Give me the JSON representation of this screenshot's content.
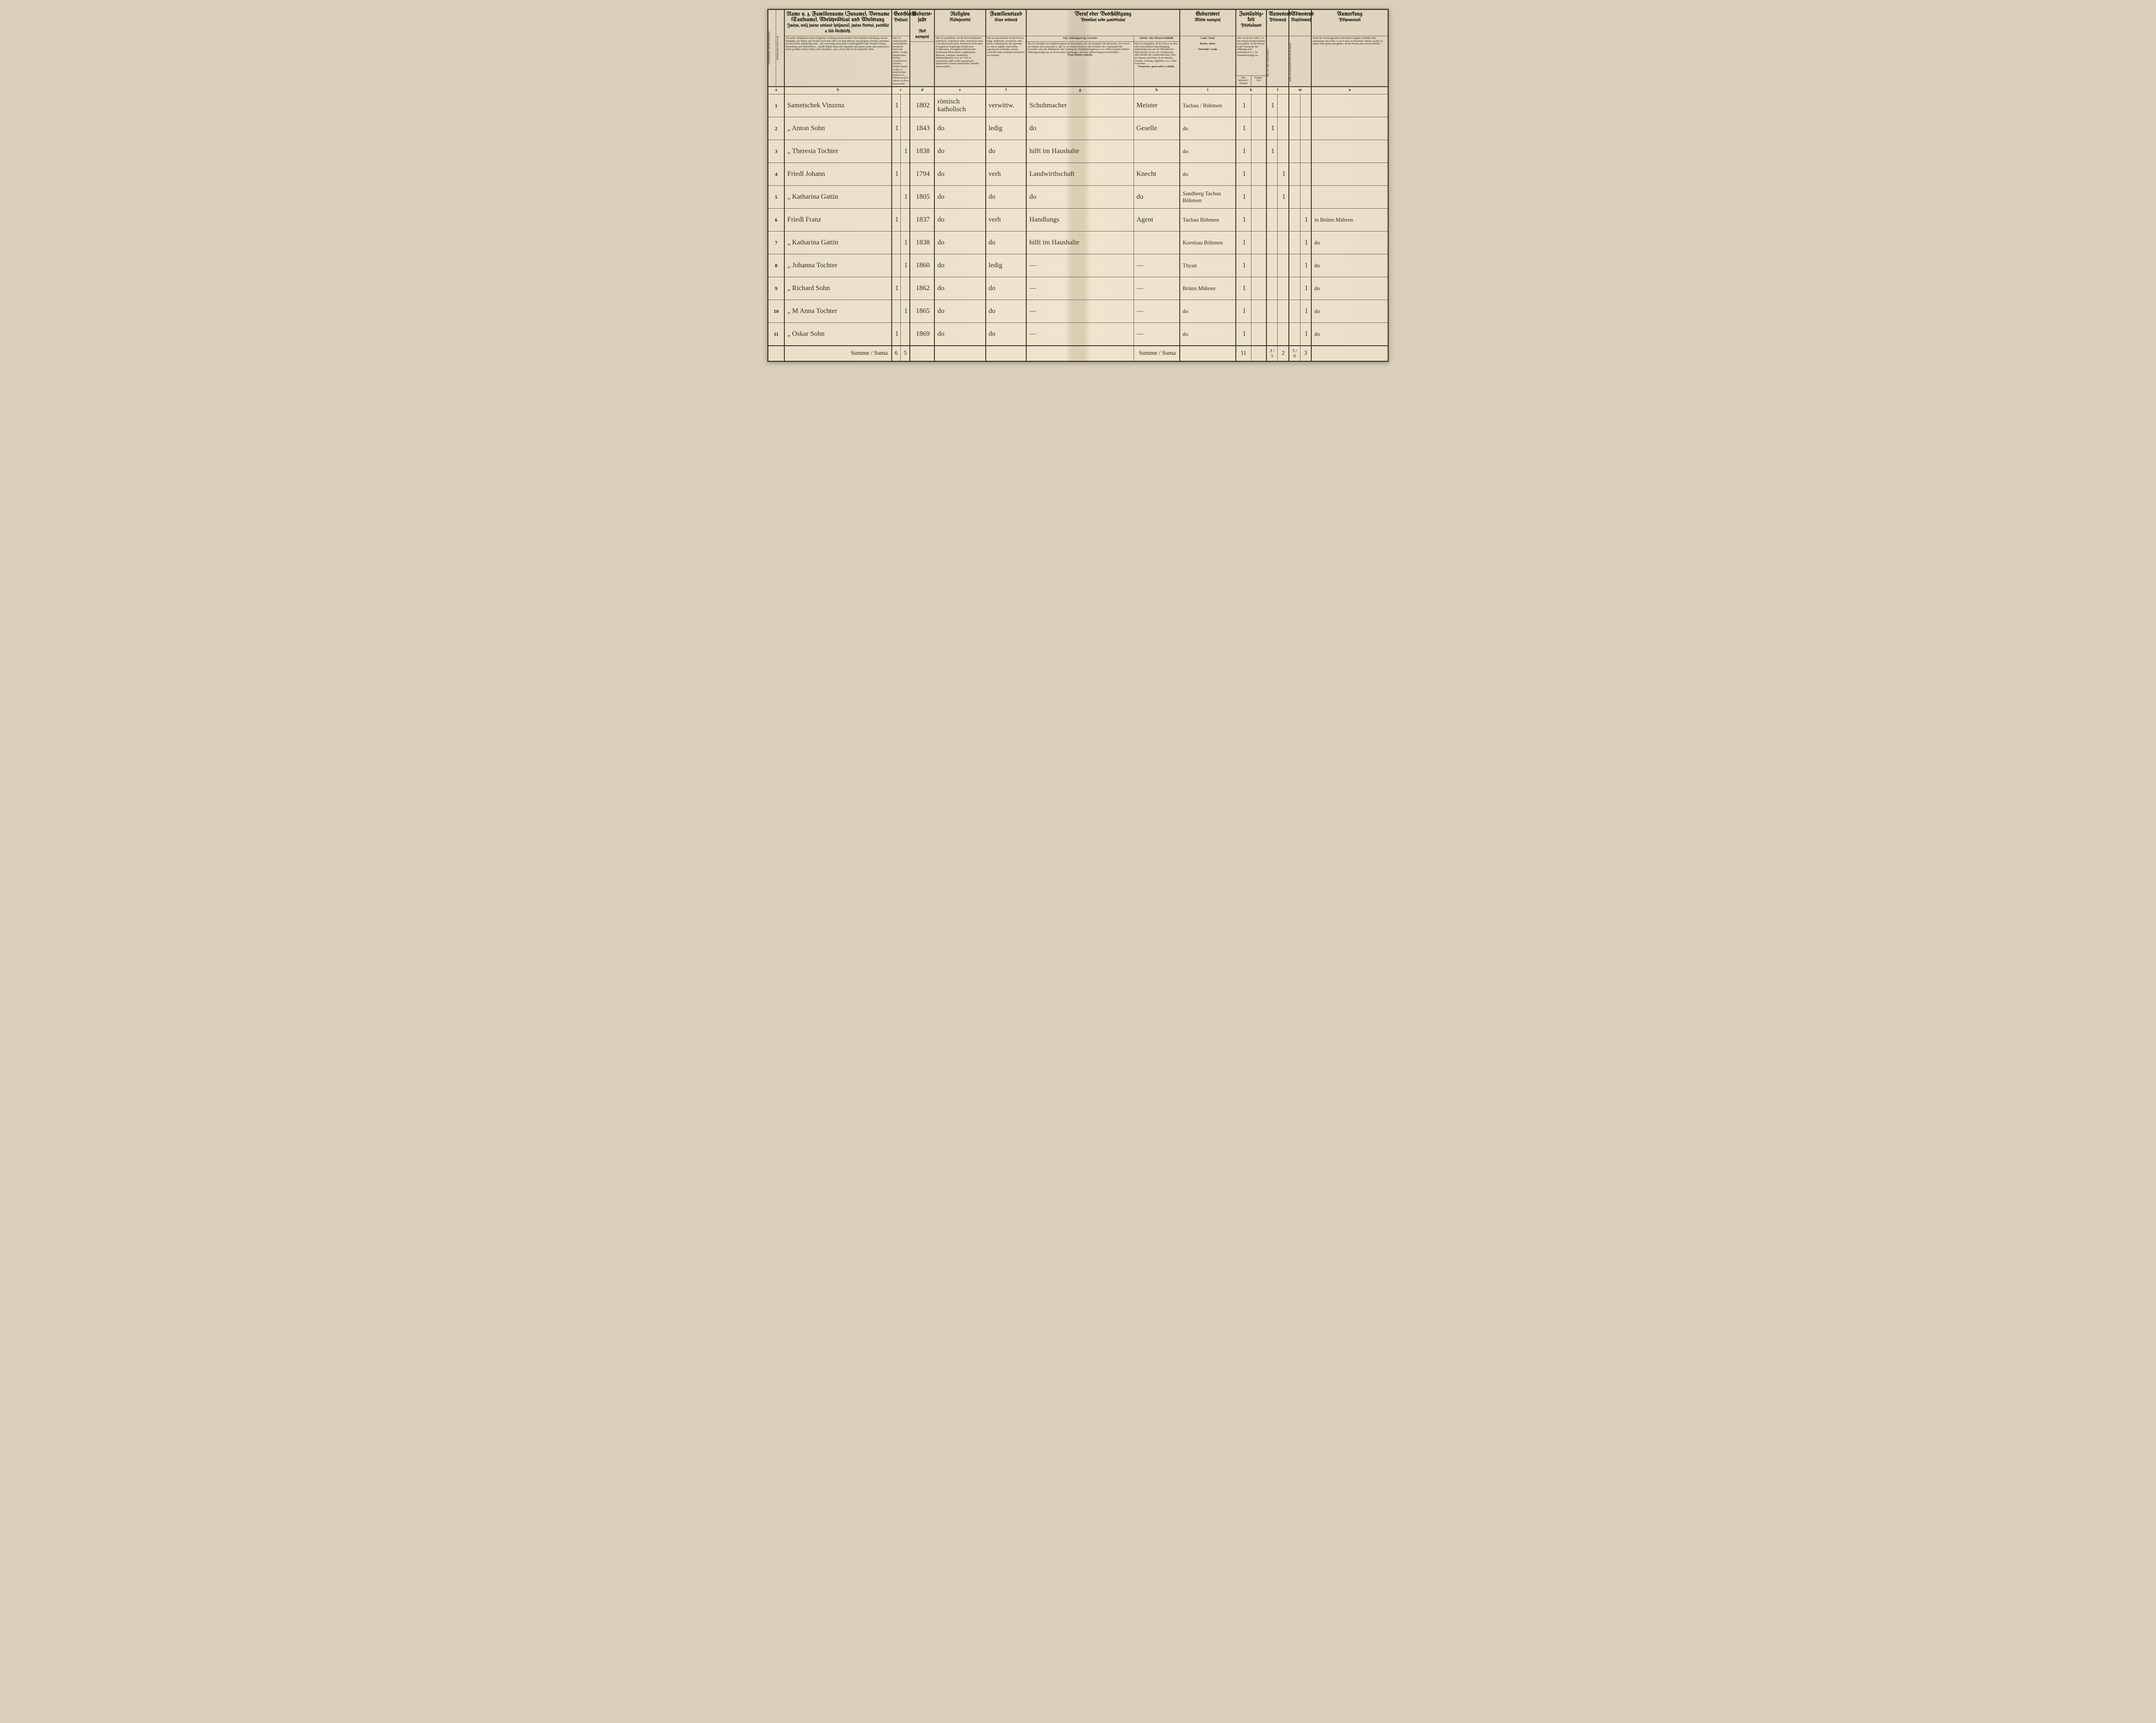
{
  "headers": {
    "name": {
      "de": "Name u. z. Familienname (Zuname), Vorname (Taufname), Adelsprädicat und Adelsrang",
      "cz": "Jméno, totiž jméno rodinné (příjmení), jméno křestné, predikát a řád šlechtický."
    },
    "sex": {
      "de": "Geschlecht",
      "cz": "Pohlaví"
    },
    "birth": {
      "de": "Geburts-jahr",
      "cz": "Rok narození"
    },
    "religion": {
      "de": "Religion",
      "cz": "Náboženství"
    },
    "famstate": {
      "de": "Familienstand",
      "cz": "Stav rodinný"
    },
    "occupation": {
      "de": "Beruf oder Beschäftigung",
      "cz": "Povolání nebo zaměstnání"
    },
    "occ_sub1": {
      "de": "Amt, Nahrungszweig, Gewerbe.",
      "cz": "Úřad, živnost, řemeslo."
    },
    "occ_sub2": {
      "de": "Arbeits- oder Dienstverhältniß.",
      "cz": "Postavení v práci nebo ve službě."
    },
    "birthplace": {
      "de": "Geburtsort",
      "cz": "Místo narození"
    },
    "zust": {
      "de": "Zuständig-keit",
      "cz": "Příslušnost"
    },
    "anwesend": {
      "de": "Anwesend",
      "cz": "Přítomný"
    },
    "abwesend": {
      "de": "Abwesend",
      "cz": "Nepřítomný"
    },
    "note": {
      "de": "Anmerkung",
      "cz": "Připomenutí"
    },
    "land": "Land / Země",
    "bezirk": "Bezirk / okres",
    "ortschaft": "Ortschaft / osada",
    "einheimisch": "Ein-heimisch / Domácí",
    "fremd": "Fremd / Cizí",
    "summe": "Summe / Suma"
  },
  "tiny": {
    "name_desc": "Von jeder Wohnpartei sind in folgender Ordnung einzuschreiben: Das Familien-Oberhaupt, dessen Ehegattin, die Söhne und Töchter nach dem Alter von dem ältesten zum jüngsten abwärts, insoferne sie noch nicht selbständig sind... Nur zeitweilig anwesende Familienglieder oder Fremde (Gäste). Dienstleute und Hilfsarbeiter... Každý držitel domu neb nájemník má zapsati osoby ního poloviční v tomto pořádku: hlavu rodiny, jeho manželku, syny a dcery dle let od nejstaršího dolů...",
    "sex_desc": "Das Ge-schlecht jeder verzeichneten Person ist durch die Ziffer 1 in der betreffenden Rubrik ersichtlich zu machen. Pohlaví každé osoby za-psané pozna-mená se čí-slicem jen již v rubrice na-levo nazna-čené.",
    "relig_desc": "Hier ist anzuführen, ob die Person Römisch-katholisch, Griechisch-unirt, Armenisch-unirt, Griechisch-nicht unirt, Armenisch nicht unirt, Evangelisch Augsburger Konfession (Lutheraner), Evangelisch helvetischer Konfession (Reformirt), Anglikanisch, Menonit, Unitarier, Israelitisch, Mohamedanisch u.s.w. ist. Tuto se poznamená, zdali osoba zapsaná jest náboženství: římsko-katolického, řeckého sjednoceného...",
    "fam_desc": "Hier ist einzuzeichen ob die Person ledig, verheiratet, verwitwet, oder durch Auflösung der Ehe getrennt ist. Zde se napíše, zdali osoba zapsaná jest svobodna, ženatá, ovdovělá, nebo zrušením manželství roz-loučená.",
    "occ_desc": "Die Art desselben ist möglichst genau zu bezeichnen, z.B. die Kategorie des Beam-ten, ob er noch im Dienste oder pensionirt u. dgl. ist, in wessen Dienst er sich befindet, der Gegenstand des Gewerbes oder der Fabrikation, die Gattung des Handelsbefugnisses u.s.w. Wenn Jemand mehrere Nahrungszweige hat, so ist nur jener einzutragen, wel-cher seinen Hauptwerwerb bildet...",
    "work_desc": "Hier ist anzugeben, ob die Person an dem oben bezeichneten Beschäftigung selbständig oder nur als Hilfsarbei-ter Theil nimmt, ob sie z.B. Gutsbesitzer oder Pächter der Landwirthschaft, Oder im Dienste-stehender, ob sie Meister, Geselle, Lehrling, Taglöhner u.s.w. einer Gewerbes...",
    "zust_desc": "Hier ist mit der Ziffer 1 in der entsprechenden Rubrik anzu-geben, ob die Person in der Gemeinde des Zählungs-ortes einheimisch d. i. ihr heimatberechtigt ist...",
    "note_desc": "Wenn die Person gänzlich (auf beiden Augen) er-blindet oder taubstumm sein sollte, so ist es hier zu bemerken. Ebenso ist hier in jedem Falle genau anzugeben, ob die Person zum activen Militär..."
  },
  "letters": [
    "a",
    "b",
    "c",
    "d",
    "e",
    "f",
    "g",
    "h",
    "i",
    "k",
    "l",
    "m",
    "n"
  ],
  "rows": [
    {
      "n": "1",
      "name": "Sametschek Vinzenz",
      "m": "1",
      "f": "",
      "year": "1802",
      "relig": "römisch katholisch",
      "fam": "verwittw.",
      "occ": "Schuhmacher",
      "work": "Meister",
      "birth": "Tachau / Böhmen",
      "za": "1",
      "zb": "",
      "aa": "1",
      "ab": "",
      "ba": "",
      "bb": "",
      "note": ""
    },
    {
      "n": "2",
      "name": "„ Anton Sohn",
      "m": "1",
      "f": "",
      "year": "1843",
      "relig": "do",
      "fam": "ledig",
      "occ": "do",
      "work": "Geselle",
      "birth": "do",
      "za": "1",
      "zb": "",
      "aa": "1",
      "ab": "",
      "ba": "",
      "bb": "",
      "note": ""
    },
    {
      "n": "3",
      "name": "„ Theresia Tochter",
      "m": "",
      "f": "1",
      "year": "1838",
      "relig": "do",
      "fam": "do",
      "occ": "hilft im Haushalte",
      "work": "",
      "birth": "do",
      "za": "1",
      "zb": "",
      "aa": "1",
      "ab": "",
      "ba": "",
      "bb": "",
      "note": ""
    },
    {
      "n": "4",
      "name": "Friedl Johann",
      "m": "1",
      "f": "",
      "year": "1794",
      "relig": "do",
      "fam": "verh",
      "occ": "Landwirthschaft",
      "work": "Knecht",
      "birth": "do",
      "za": "1",
      "zb": "",
      "aa": "",
      "ab": "1",
      "ba": "",
      "bb": "",
      "note": ""
    },
    {
      "n": "5",
      "name": "„ Katharina Gattin",
      "m": "",
      "f": "1",
      "year": "1805",
      "relig": "do",
      "fam": "do",
      "occ": "do",
      "work": "do",
      "birth": "Sandberg Tachau Böhmen",
      "za": "1",
      "zb": "",
      "aa": "",
      "ab": "1",
      "ba": "",
      "bb": "",
      "note": ""
    },
    {
      "n": "6",
      "name": "Friedl Franz",
      "m": "1",
      "f": "",
      "year": "1837",
      "relig": "do",
      "fam": "verh",
      "occ": "Handlungs",
      "work": "Agent",
      "birth": "Tachau Böhmen",
      "za": "1",
      "zb": "",
      "aa": "",
      "ab": "",
      "ba": "",
      "bb": "1",
      "note": "in Brünn Mähren"
    },
    {
      "n": "7",
      "name": "„ Katharina Gattin",
      "m": "",
      "f": "1",
      "year": "1838",
      "relig": "do",
      "fam": "do",
      "occ": "hilft im Haushalte",
      "work": "",
      "birth": "Kornitau Böhmen",
      "za": "1",
      "zb": "",
      "aa": "",
      "ab": "",
      "ba": "",
      "bb": "1",
      "note": "do"
    },
    {
      "n": "8",
      "name": "„ Johanna Tochter",
      "m": "",
      "f": "1",
      "year": "1860",
      "relig": "do",
      "fam": "ledig",
      "occ": "—",
      "work": "—",
      "birth": "Thyan",
      "za": "1",
      "zb": "",
      "aa": "",
      "ab": "",
      "ba": "",
      "bb": "1",
      "note": "do"
    },
    {
      "n": "9",
      "name": "„ Richard Sohn",
      "m": "1",
      "f": "",
      "year": "1862",
      "relig": "do",
      "fam": "do",
      "occ": "—",
      "work": "—",
      "birth": "Brünn Mähren",
      "za": "1",
      "zb": "",
      "aa": "",
      "ab": "",
      "ba": "",
      "bb": "1",
      "note": "do"
    },
    {
      "n": "10",
      "name": "„ M Anna Tochter",
      "m": "",
      "f": "1",
      "year": "1865",
      "relig": "do",
      "fam": "do",
      "occ": "—",
      "work": "—",
      "birth": "do",
      "za": "1",
      "zb": "",
      "aa": "",
      "ab": "",
      "ba": "",
      "bb": "1",
      "note": "do"
    },
    {
      "n": "11",
      "name": "„ Oskar Sohn",
      "m": "1",
      "f": "",
      "year": "1869",
      "relig": "do",
      "fam": "do",
      "occ": "—",
      "work": "—",
      "birth": "do",
      "za": "1",
      "zb": "",
      "aa": "",
      "ab": "",
      "ba": "",
      "bb": "1",
      "note": "do"
    }
  ],
  "sums": {
    "m": "6",
    "f": "5",
    "za": "11",
    "zb": "",
    "aa": "3 / 5",
    "ab": "2",
    "ba": "3 / 6",
    "bb": "3"
  }
}
